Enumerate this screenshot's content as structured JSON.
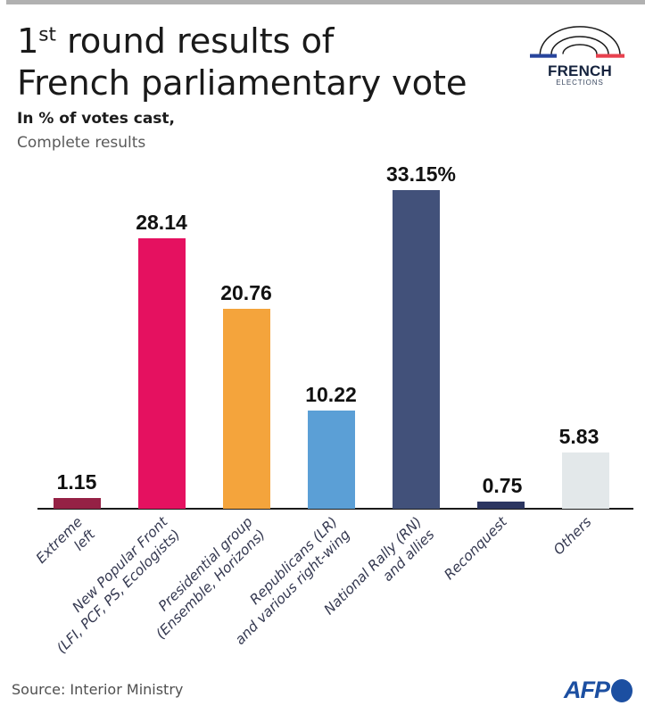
{
  "header": {
    "title_number": "1",
    "title_sup": "st",
    "title_line1_rest": " round results of",
    "title_line2": "French parliamentary vote",
    "subtitle_bold": "In % of votes cast,",
    "subtitle_regular": "Complete results"
  },
  "logo": {
    "name": "FRENCH",
    "subname": "ELECTIONS",
    "flag_blue": "#27449c",
    "flag_red": "#e8414e"
  },
  "chart_data": {
    "type": "bar",
    "title": "1st round results of French parliamentary vote",
    "ylabel": "% of votes cast",
    "ylim": [
      0,
      34.5
    ],
    "grid": false,
    "categories": [
      [
        "Extreme",
        "left"
      ],
      [
        "New Popular Front",
        "(LFI, PCF, PS, Ecologists)"
      ],
      [
        "Presidential group",
        "(Ensemble, Horizons)"
      ],
      [
        "Republicans (LR)",
        "and various right-wing"
      ],
      [
        "National Rally (RN)",
        "and allies"
      ],
      [
        "Reconquest"
      ],
      [
        "Others"
      ]
    ],
    "values": [
      1.15,
      28.14,
      20.76,
      10.22,
      33.15,
      0.75,
      5.83
    ],
    "value_labels": [
      "1.15",
      "28.14",
      "20.76",
      "10.22",
      "33.15%",
      "0.75",
      "5.83"
    ],
    "colors": [
      "#952145",
      "#e51160",
      "#f4a43c",
      "#5b9fd6",
      "#42517a",
      "#2b3560",
      "#e3e8ea"
    ]
  },
  "footer": {
    "source": "Source: Interior Ministry",
    "brand": "AFP"
  }
}
